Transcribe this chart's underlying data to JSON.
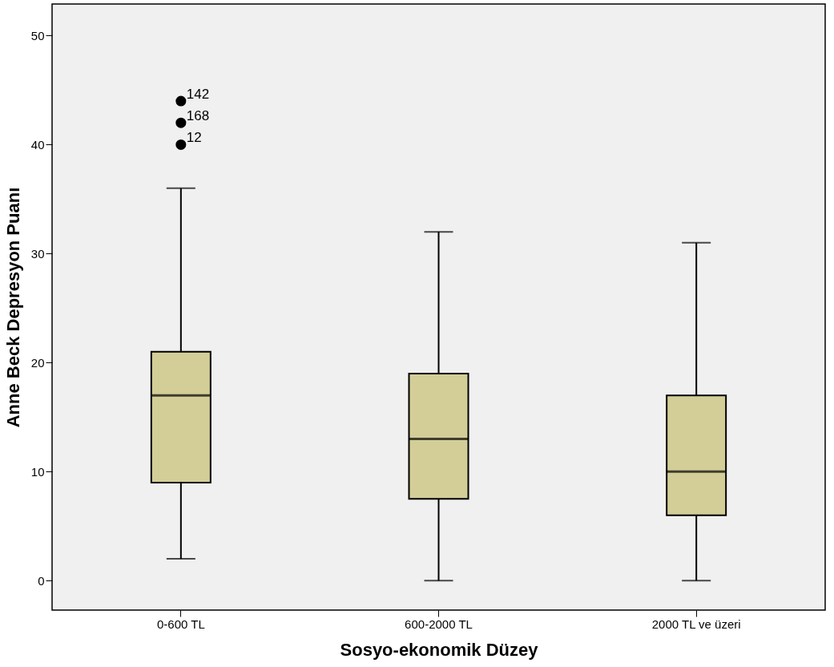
{
  "chart_data": {
    "type": "box",
    "xlabel": "Sosyo-ekonomik Düzey",
    "ylabel": "Anne Beck Depresyon Puanı",
    "categories": [
      "0-600 TL",
      "600-2000 TL",
      "2000 TL ve üzeri"
    ],
    "series": [
      {
        "color": "#d3ce97",
        "boxes": [
          {
            "low": 2,
            "q1": 9,
            "median": 17,
            "q3": 21,
            "high": 36,
            "outliers": [
              44,
              42,
              40
            ]
          },
          {
            "low": 0,
            "q1": 7.5,
            "median": 13,
            "q3": 19,
            "high": 32
          },
          {
            "low": 0,
            "q1": 6,
            "median": 10,
            "q3": 17,
            "high": 31
          }
        ]
      }
    ],
    "ylim": [
      -2.7,
      52.9
    ],
    "yticks": [
      0,
      10,
      20,
      30,
      40,
      50
    ],
    "annotations": [
      "142",
      "168",
      "12"
    ],
    "grid": false,
    "legend": false
  }
}
